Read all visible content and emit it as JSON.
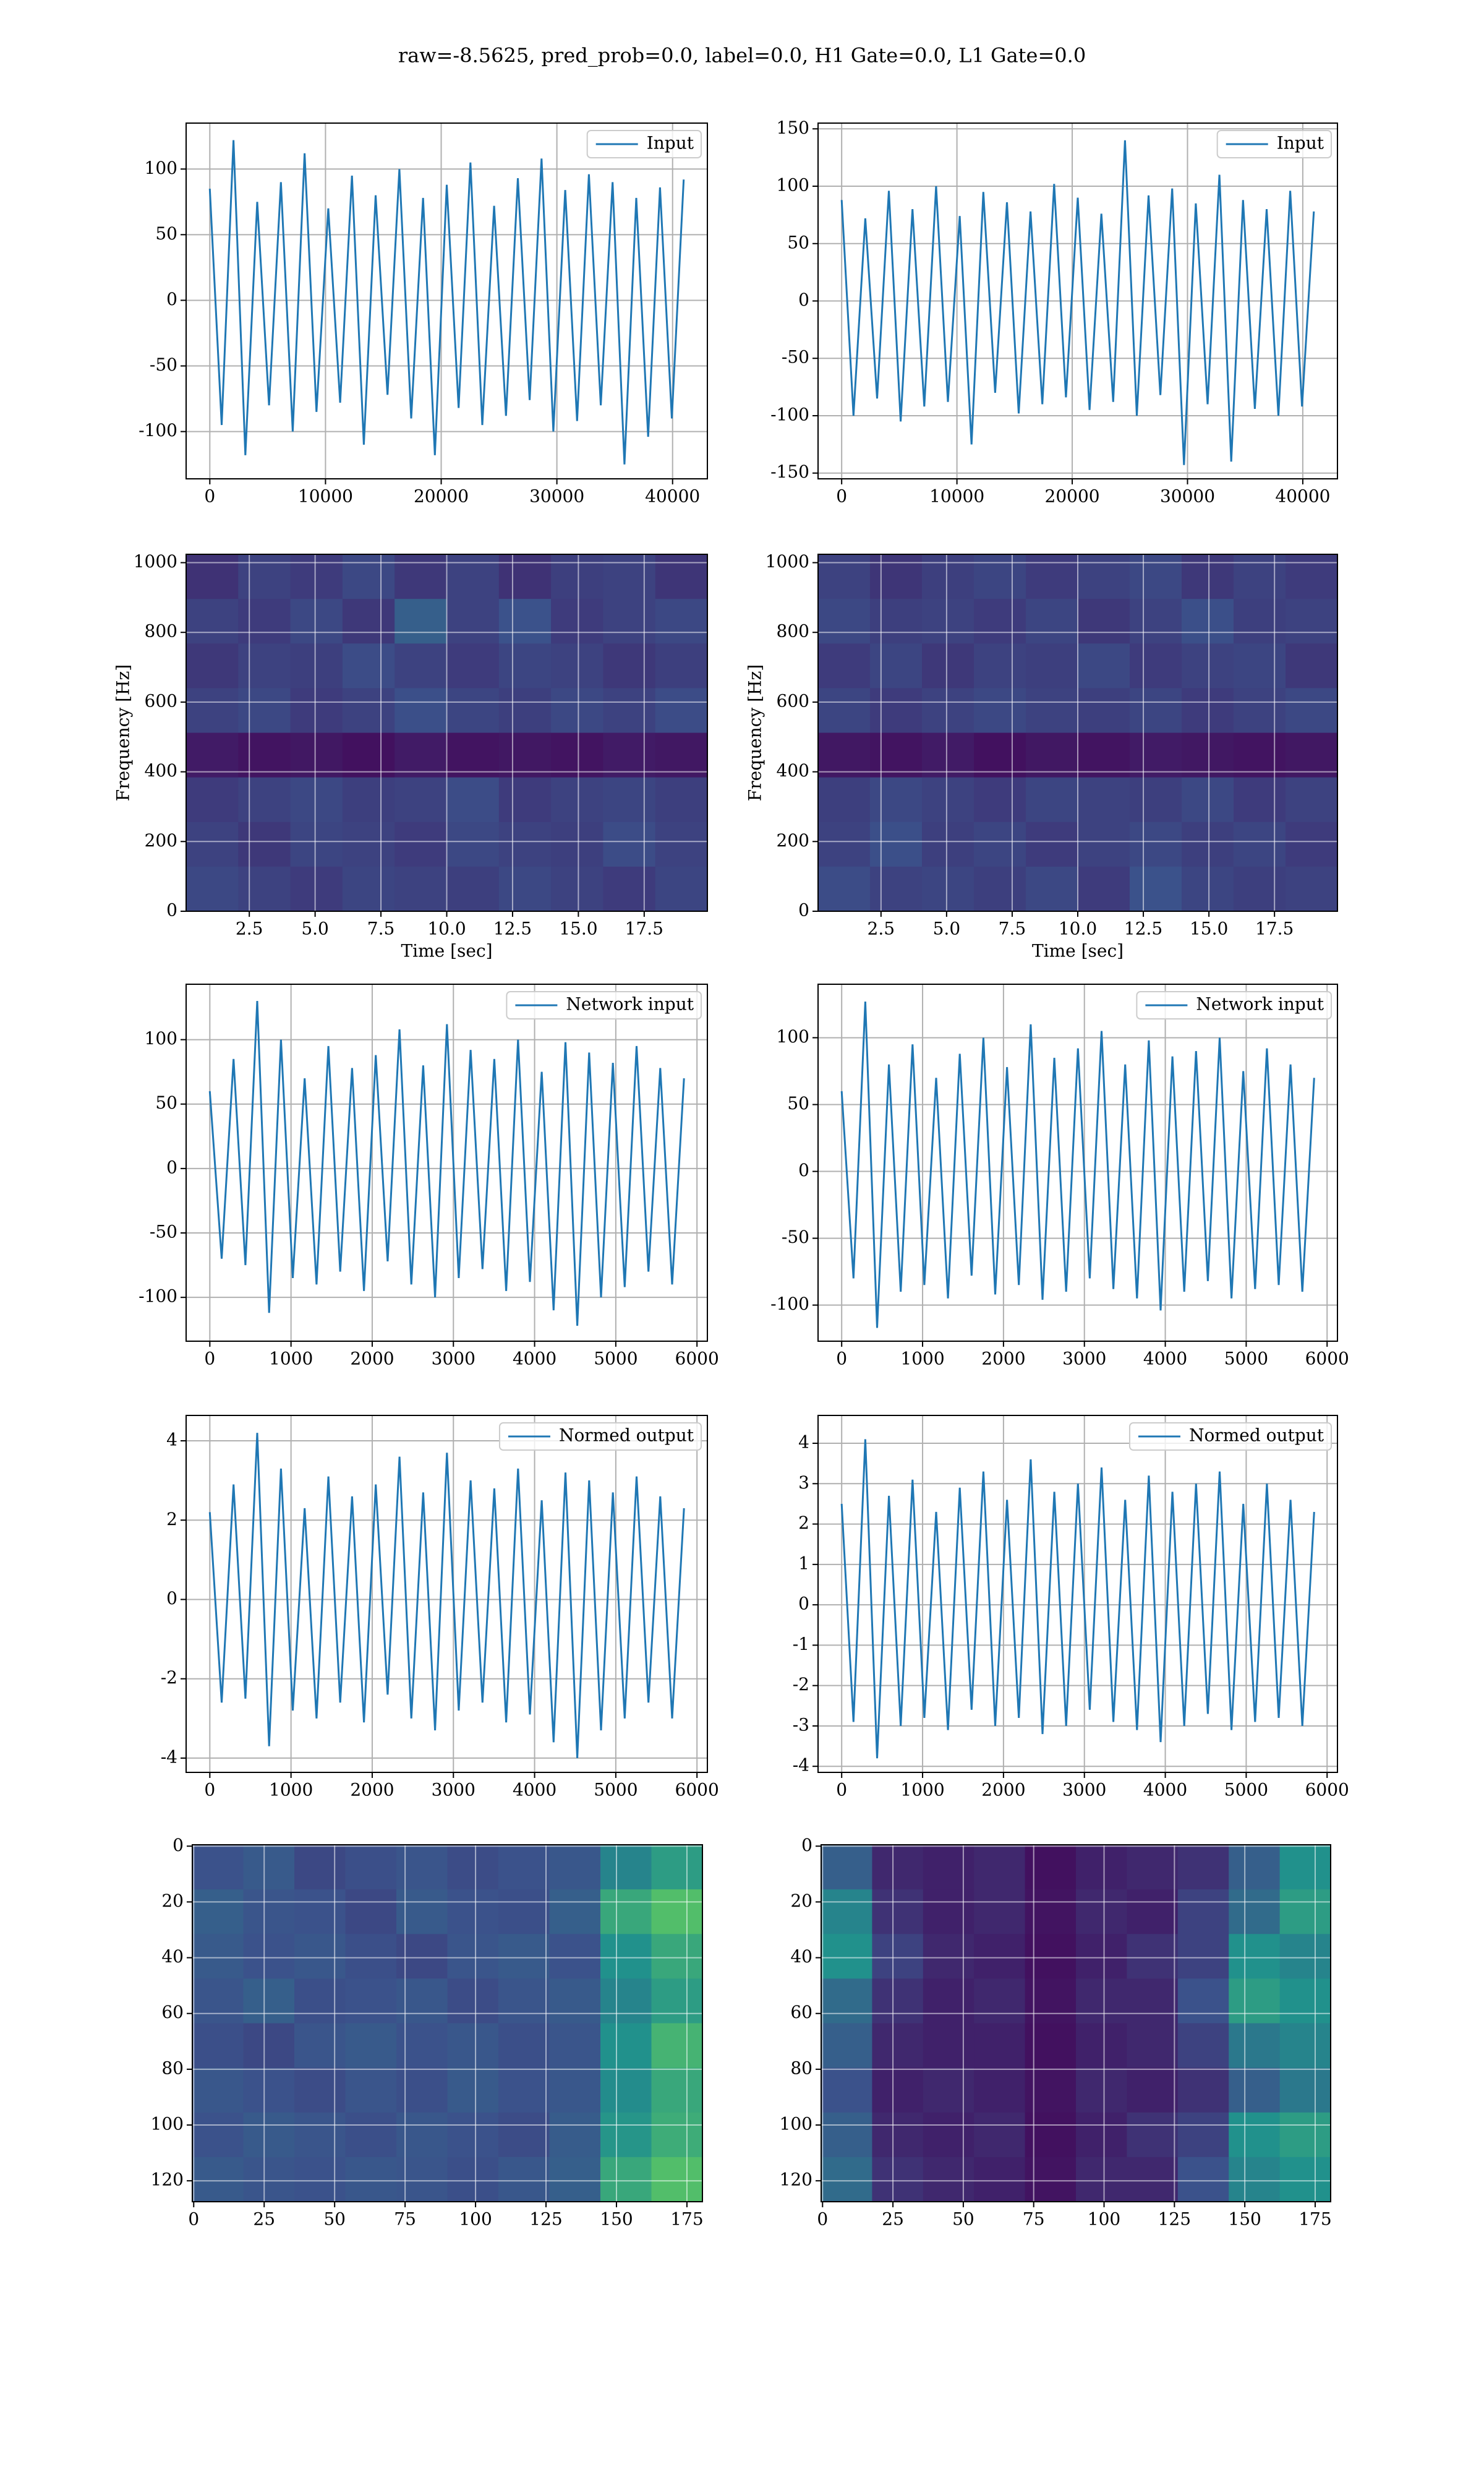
{
  "title": "raw=-8.5625, pred_prob=0.0, label=0.0, H1 Gate=0.0, L1 Gate=0.0",
  "chart_data": [
    {
      "type": "line",
      "legend": "upper right",
      "grid": true,
      "xlim": [
        -2048,
        43008
      ],
      "xticks": [
        0,
        10000,
        20000,
        30000,
        40000
      ],
      "ylim": [
        -136,
        135
      ],
      "yticks": [
        -100,
        -50,
        0,
        50,
        100
      ],
      "x": [
        0,
        1024,
        2048,
        3072,
        4096,
        5120,
        6144,
        7168,
        8192,
        9216,
        10240,
        11264,
        12288,
        13312,
        14336,
        15360,
        16384,
        17408,
        18432,
        19456,
        20480,
        21504,
        22528,
        23552,
        24576,
        25600,
        26624,
        27648,
        28672,
        29696,
        30720,
        31744,
        32768,
        33792,
        34816,
        35840,
        36864,
        37888,
        38912,
        39936,
        40960
      ],
      "series": [
        {
          "name": "Input",
          "color": "#1f77b4",
          "values": [
            85,
            -95,
            122,
            -118,
            75,
            -80,
            90,
            -100,
            112,
            -85,
            70,
            -78,
            95,
            -110,
            80,
            -72,
            100,
            -90,
            78,
            -118,
            88,
            -82,
            105,
            -95,
            72,
            -88,
            93,
            -76,
            108,
            -100,
            84,
            -92,
            96,
            -80,
            90,
            -125,
            78,
            -104,
            86,
            -90,
            92
          ]
        }
      ]
    },
    {
      "type": "line",
      "legend": "upper right",
      "grid": true,
      "xlim": [
        -2048,
        43008
      ],
      "xticks": [
        0,
        10000,
        20000,
        30000,
        40000
      ],
      "ylim": [
        -155,
        155
      ],
      "yticks": [
        -150,
        -100,
        -50,
        0,
        50,
        100,
        150
      ],
      "x": [
        0,
        1024,
        2048,
        3072,
        4096,
        5120,
        6144,
        7168,
        8192,
        9216,
        10240,
        11264,
        12288,
        13312,
        14336,
        15360,
        16384,
        17408,
        18432,
        19456,
        20480,
        21504,
        22528,
        23552,
        24576,
        25600,
        26624,
        27648,
        28672,
        29696,
        30720,
        31744,
        32768,
        33792,
        34816,
        35840,
        36864,
        37888,
        38912,
        39936,
        40960
      ],
      "series": [
        {
          "name": "Input",
          "color": "#1f77b4",
          "values": [
            88,
            -100,
            72,
            -85,
            96,
            -105,
            80,
            -92,
            100,
            -88,
            74,
            -125,
            95,
            -80,
            86,
            -98,
            78,
            -90,
            102,
            -84,
            90,
            -95,
            76,
            -88,
            140,
            -100,
            92,
            -82,
            98,
            -143,
            85,
            -90,
            110,
            -140,
            88,
            -94,
            80,
            -100,
            96,
            -92,
            78
          ]
        }
      ]
    },
    {
      "type": "heatmap",
      "colormap": "viridis",
      "zlim": [
        0,
        1
      ],
      "grid": true,
      "xlabel": "Time [sec]",
      "ylabel": "Frequency [Hz]",
      "xlim": [
        0.1,
        19.9
      ],
      "xticks": [
        2.5,
        {
          "value": 5,
          "label": "5.0"
        },
        7.5,
        {
          "value": 10,
          "label": "10.0"
        },
        12.5,
        {
          "value": 15,
          "label": "15.0"
        },
        17.5
      ],
      "ylim": [
        0,
        1024
      ],
      "yticks": [
        0,
        200,
        400,
        600,
        800,
        1000
      ],
      "z": [
        [
          0.15,
          0.2,
          0.18,
          0.22,
          0.17,
          0.2,
          0.15,
          0.19,
          0.2,
          0.16
        ],
        [
          0.2,
          0.18,
          0.22,
          0.17,
          0.3,
          0.2,
          0.25,
          0.18,
          0.2,
          0.22
        ],
        [
          0.17,
          0.2,
          0.19,
          0.23,
          0.2,
          0.18,
          0.21,
          0.2,
          0.17,
          0.19
        ],
        [
          0.2,
          0.22,
          0.18,
          0.2,
          0.24,
          0.21,
          0.19,
          0.22,
          0.2,
          0.23
        ],
        [
          0.08,
          0.06,
          0.07,
          0.05,
          0.08,
          0.06,
          0.07,
          0.06,
          0.08,
          0.07
        ],
        [
          0.18,
          0.2,
          0.22,
          0.19,
          0.2,
          0.23,
          0.18,
          0.2,
          0.21,
          0.19
        ],
        [
          0.2,
          0.17,
          0.21,
          0.2,
          0.18,
          0.22,
          0.2,
          0.19,
          0.23,
          0.2
        ],
        [
          0.22,
          0.2,
          0.18,
          0.21,
          0.2,
          0.19,
          0.22,
          0.2,
          0.18,
          0.21
        ]
      ]
    },
    {
      "type": "heatmap",
      "colormap": "viridis",
      "zlim": [
        0,
        1
      ],
      "grid": true,
      "xlabel": "Time [sec]",
      "ylabel": "Frequency [Hz]",
      "xlim": [
        0.1,
        19.9
      ],
      "xticks": [
        2.5,
        {
          "value": 5,
          "label": "5.0"
        },
        7.5,
        {
          "value": 10,
          "label": "10.0"
        },
        12.5,
        {
          "value": 15,
          "label": "15.0"
        },
        17.5
      ],
      "ylim": [
        0,
        1024
      ],
      "yticks": [
        0,
        200,
        400,
        600,
        800,
        1000
      ],
      "z": [
        [
          0.2,
          0.16,
          0.19,
          0.21,
          0.18,
          0.2,
          0.22,
          0.17,
          0.2,
          0.18
        ],
        [
          0.22,
          0.19,
          0.2,
          0.18,
          0.21,
          0.17,
          0.2,
          0.24,
          0.19,
          0.2
        ],
        [
          0.18,
          0.21,
          0.17,
          0.2,
          0.19,
          0.22,
          0.18,
          0.2,
          0.21,
          0.17
        ],
        [
          0.21,
          0.18,
          0.2,
          0.22,
          0.2,
          0.19,
          0.21,
          0.18,
          0.2,
          0.22
        ],
        [
          0.07,
          0.06,
          0.08,
          0.05,
          0.07,
          0.06,
          0.08,
          0.07,
          0.06,
          0.07
        ],
        [
          0.19,
          0.22,
          0.2,
          0.18,
          0.21,
          0.2,
          0.19,
          0.22,
          0.18,
          0.2
        ],
        [
          0.2,
          0.24,
          0.19,
          0.21,
          0.18,
          0.2,
          0.22,
          0.19,
          0.21,
          0.18
        ],
        [
          0.23,
          0.2,
          0.21,
          0.19,
          0.22,
          0.18,
          0.25,
          0.21,
          0.19,
          0.2
        ]
      ]
    },
    {
      "type": "line",
      "legend": "upper right",
      "grid": true,
      "xlim": [
        -292,
        6128
      ],
      "xticks": [
        0,
        1000,
        2000,
        3000,
        4000,
        5000,
        6000
      ],
      "ylim": [
        -134,
        143
      ],
      "yticks": [
        -100,
        -50,
        0,
        50,
        100
      ],
      "x": [
        0,
        146,
        292,
        438,
        584,
        730,
        876,
        1022,
        1168,
        1314,
        1460,
        1606,
        1752,
        1898,
        2044,
        2190,
        2336,
        2482,
        2628,
        2774,
        2920,
        3066,
        3212,
        3358,
        3504,
        3650,
        3796,
        3942,
        4088,
        4234,
        4380,
        4526,
        4672,
        4818,
        4964,
        5110,
        5256,
        5402,
        5548,
        5694,
        5840
      ],
      "series": [
        {
          "name": "Network input",
          "color": "#1f77b4",
          "values": [
            60,
            -70,
            85,
            -75,
            130,
            -112,
            100,
            -85,
            70,
            -90,
            95,
            -80,
            78,
            -95,
            88,
            -72,
            108,
            -90,
            80,
            -100,
            112,
            -85,
            92,
            -78,
            85,
            -95,
            100,
            -88,
            75,
            -110,
            98,
            -122,
            90,
            -100,
            82,
            -92,
            95,
            -80,
            78,
            -90,
            70
          ]
        }
      ]
    },
    {
      "type": "line",
      "legend": "upper right",
      "grid": true,
      "xlim": [
        -292,
        6128
      ],
      "xticks": [
        0,
        1000,
        2000,
        3000,
        4000,
        5000,
        6000
      ],
      "ylim": [
        -127,
        140
      ],
      "yticks": [
        -100,
        -50,
        0,
        50,
        100
      ],
      "x": [
        0,
        146,
        292,
        438,
        584,
        730,
        876,
        1022,
        1168,
        1314,
        1460,
        1606,
        1752,
        1898,
        2044,
        2190,
        2336,
        2482,
        2628,
        2774,
        2920,
        3066,
        3212,
        3358,
        3504,
        3650,
        3796,
        3942,
        4088,
        4234,
        4380,
        4526,
        4672,
        4818,
        4964,
        5110,
        5256,
        5402,
        5548,
        5694,
        5840
      ],
      "series": [
        {
          "name": "Network input",
          "color": "#1f77b4",
          "values": [
            60,
            -80,
            127,
            -117,
            80,
            -90,
            95,
            -85,
            70,
            -95,
            88,
            -78,
            100,
            -92,
            78,
            -85,
            110,
            -96,
            85,
            -90,
            92,
            -80,
            105,
            -88,
            80,
            -95,
            98,
            -104,
            86,
            -90,
            90,
            -82,
            100,
            -95,
            75,
            -88,
            92,
            -85,
            80,
            -90,
            70
          ]
        }
      ]
    },
    {
      "type": "line",
      "legend": "upper right",
      "grid": true,
      "xlim": [
        -292,
        6128
      ],
      "xticks": [
        0,
        1000,
        2000,
        3000,
        4000,
        5000,
        6000
      ],
      "ylim": [
        -4.36,
        4.64
      ],
      "yticks": [
        -4,
        -2,
        0,
        2,
        4
      ],
      "x": [
        0,
        146,
        292,
        438,
        584,
        730,
        876,
        1022,
        1168,
        1314,
        1460,
        1606,
        1752,
        1898,
        2044,
        2190,
        2336,
        2482,
        2628,
        2774,
        2920,
        3066,
        3212,
        3358,
        3504,
        3650,
        3796,
        3942,
        4088,
        4234,
        4380,
        4526,
        4672,
        4818,
        4964,
        5110,
        5256,
        5402,
        5548,
        5694,
        5840
      ],
      "series": [
        {
          "name": "Normed output",
          "color": "#1f77b4",
          "values": [
            2.2,
            -2.6,
            2.9,
            -2.5,
            4.2,
            -3.7,
            3.3,
            -2.8,
            2.3,
            -3.0,
            3.1,
            -2.6,
            2.6,
            -3.1,
            2.9,
            -2.4,
            3.6,
            -3.0,
            2.7,
            -3.3,
            3.7,
            -2.8,
            3.0,
            -2.6,
            2.8,
            -3.1,
            3.3,
            -2.9,
            2.5,
            -3.6,
            3.2,
            -4.0,
            3.0,
            -3.3,
            2.7,
            -3.0,
            3.1,
            -2.6,
            2.6,
            -3.0,
            2.3
          ]
        }
      ]
    },
    {
      "type": "line",
      "legend": "upper right",
      "grid": true,
      "xlim": [
        -292,
        6128
      ],
      "xticks": [
        0,
        1000,
        2000,
        3000,
        4000,
        5000,
        6000
      ],
      "ylim": [
        -4.15,
        4.69
      ],
      "yticks": [
        -4,
        -3,
        -2,
        -1,
        0,
        1,
        2,
        3,
        4
      ],
      "x": [
        0,
        146,
        292,
        438,
        584,
        730,
        876,
        1022,
        1168,
        1314,
        1460,
        1606,
        1752,
        1898,
        2044,
        2190,
        2336,
        2482,
        2628,
        2774,
        2920,
        3066,
        3212,
        3358,
        3504,
        3650,
        3796,
        3942,
        4088,
        4234,
        4380,
        4526,
        4672,
        4818,
        4964,
        5110,
        5256,
        5402,
        5548,
        5694,
        5840
      ],
      "series": [
        {
          "name": "Normed output",
          "color": "#1f77b4",
          "values": [
            2.5,
            -2.9,
            4.1,
            -3.8,
            2.7,
            -3.0,
            3.1,
            -2.8,
            2.3,
            -3.1,
            2.9,
            -2.6,
            3.3,
            -3.0,
            2.6,
            -2.8,
            3.6,
            -3.2,
            2.8,
            -3.0,
            3.0,
            -2.6,
            3.4,
            -2.9,
            2.6,
            -3.1,
            3.2,
            -3.4,
            2.8,
            -3.0,
            3.0,
            -2.7,
            3.3,
            -3.1,
            2.5,
            -2.9,
            3.0,
            -2.8,
            2.6,
            -3.0,
            2.3
          ]
        }
      ]
    },
    {
      "type": "heatmap",
      "colormap": "viridis",
      "zlim": [
        0,
        1
      ],
      "grid": true,
      "xlim": [
        -0.5,
        180.5
      ],
      "xticks": [
        0,
        25,
        50,
        75,
        100,
        125,
        150,
        175
      ],
      "ylim": [
        127.5,
        -0.5
      ],
      "yticks": [
        0,
        20,
        40,
        60,
        80,
        100,
        120
      ],
      "z": [
        [
          0.25,
          0.28,
          0.22,
          0.24,
          0.26,
          0.23,
          0.25,
          0.27,
          0.45,
          0.55
        ],
        [
          0.3,
          0.26,
          0.25,
          0.22,
          0.28,
          0.25,
          0.24,
          0.3,
          0.6,
          0.7
        ],
        [
          0.28,
          0.25,
          0.27,
          0.24,
          0.22,
          0.26,
          0.28,
          0.25,
          0.5,
          0.6
        ],
        [
          0.26,
          0.3,
          0.24,
          0.25,
          0.27,
          0.23,
          0.26,
          0.28,
          0.45,
          0.55
        ],
        [
          0.24,
          0.22,
          0.26,
          0.28,
          0.25,
          0.27,
          0.24,
          0.26,
          0.5,
          0.65
        ],
        [
          0.27,
          0.25,
          0.23,
          0.26,
          0.24,
          0.28,
          0.25,
          0.27,
          0.48,
          0.6
        ],
        [
          0.25,
          0.28,
          0.26,
          0.24,
          0.27,
          0.25,
          0.23,
          0.29,
          0.52,
          0.62
        ],
        [
          0.28,
          0.26,
          0.25,
          0.27,
          0.26,
          0.24,
          0.27,
          0.3,
          0.6,
          0.7
        ]
      ]
    },
    {
      "type": "heatmap",
      "colormap": "viridis",
      "zlim": [
        0,
        1
      ],
      "grid": true,
      "xlim": [
        -0.5,
        180.5
      ],
      "xticks": [
        0,
        25,
        50,
        75,
        100,
        125,
        150,
        175
      ],
      "ylim": [
        127.5,
        -0.5
      ],
      "yticks": [
        0,
        20,
        40,
        60,
        80,
        100,
        120
      ],
      "z": [
        [
          0.3,
          0.12,
          0.1,
          0.12,
          0.05,
          0.1,
          0.12,
          0.15,
          0.3,
          0.5
        ],
        [
          0.45,
          0.15,
          0.1,
          0.12,
          0.06,
          0.12,
          0.1,
          0.2,
          0.35,
          0.55
        ],
        [
          0.5,
          0.2,
          0.12,
          0.1,
          0.05,
          0.1,
          0.15,
          0.2,
          0.5,
          0.45
        ],
        [
          0.35,
          0.15,
          0.1,
          0.12,
          0.06,
          0.12,
          0.12,
          0.25,
          0.55,
          0.5
        ],
        [
          0.3,
          0.12,
          0.1,
          0.1,
          0.05,
          0.1,
          0.12,
          0.2,
          0.4,
          0.45
        ],
        [
          0.25,
          0.1,
          0.12,
          0.1,
          0.06,
          0.12,
          0.1,
          0.15,
          0.3,
          0.4
        ],
        [
          0.3,
          0.12,
          0.1,
          0.12,
          0.05,
          0.1,
          0.15,
          0.2,
          0.5,
          0.55
        ],
        [
          0.35,
          0.15,
          0.12,
          0.1,
          0.06,
          0.12,
          0.12,
          0.25,
          0.45,
          0.5
        ]
      ]
    }
  ]
}
